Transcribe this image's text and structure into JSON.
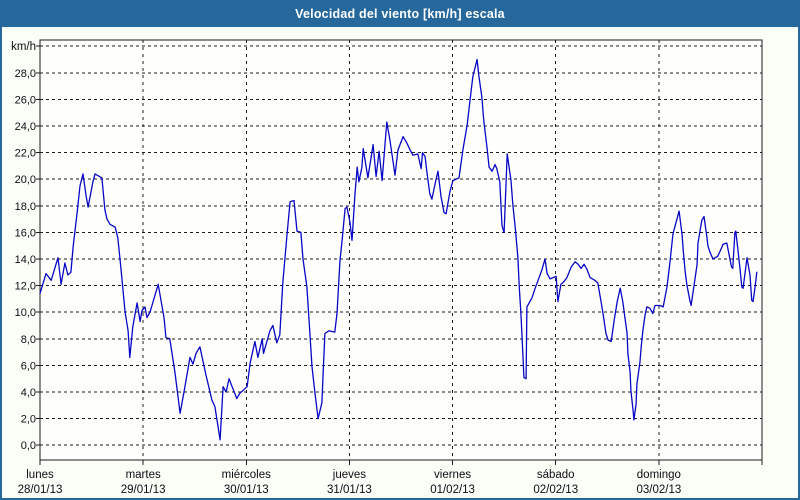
{
  "window": {
    "title": "Velocidad del viento [km/h] escala"
  },
  "colors": {
    "titlebar_bg": "#26689B",
    "outer_border": "#26689B",
    "title_text": "#FFFFFF",
    "line": "#0707C7",
    "grid": "#1c1c1c",
    "label_text": "#0d0d14",
    "plot_bg": "#FEFEFC",
    "page_bg": "#FBFDF7"
  },
  "chart_data": {
    "type": "line",
    "title": "Velocidad del viento [km/h] escala",
    "y_unit_label": "km/h",
    "ylabel": "km/h",
    "xlabel": "",
    "ylim": [
      0,
      30
    ],
    "y_tick_step": 2,
    "y_tick_labels": [
      "0,0",
      "2,0",
      "4,0",
      "6,0",
      "8,0",
      "10,0",
      "12,0",
      "14,0",
      "16,0",
      "18,0",
      "20,0",
      "22,0",
      "24,0",
      "26,0",
      "28,0"
    ],
    "grid": "dashed",
    "legend": "none",
    "x_range_hours": [
      0,
      168
    ],
    "days": [
      {
        "name": "lunes",
        "date": "28/01/13"
      },
      {
        "name": "martes",
        "date": "29/01/13"
      },
      {
        "name": "miércoles",
        "date": "30/01/13"
      },
      {
        "name": "jueves",
        "date": "31/01/13"
      },
      {
        "name": "viernes",
        "date": "01/02/13"
      },
      {
        "name": "sábado",
        "date": "02/02/13"
      },
      {
        "name": "domingo",
        "date": "03/02/13"
      }
    ],
    "series": [
      {
        "name": "velocidad del viento",
        "unit": "km/h",
        "points": [
          [
            0,
            11.4
          ],
          [
            1.4,
            12.9
          ],
          [
            2.6,
            12.4
          ],
          [
            4.2,
            14.1
          ],
          [
            4.9,
            12.1
          ],
          [
            5.8,
            13.7
          ],
          [
            6.5,
            12.8
          ],
          [
            7.2,
            13.0
          ],
          [
            7.7,
            14.9
          ],
          [
            8.6,
            17.4
          ],
          [
            9.3,
            19.5
          ],
          [
            10.0,
            20.4
          ],
          [
            10.7,
            18.8
          ],
          [
            11.2,
            17.9
          ],
          [
            12.3,
            19.8
          ],
          [
            12.8,
            20.4
          ],
          [
            14.4,
            20.1
          ],
          [
            15.1,
            17.7
          ],
          [
            15.6,
            17.0
          ],
          [
            16.3,
            16.6
          ],
          [
            17.5,
            16.4
          ],
          [
            18.1,
            15.6
          ],
          [
            18.8,
            13.4
          ],
          [
            19.8,
            10.0
          ],
          [
            20.5,
            8.6
          ],
          [
            20.9,
            6.6
          ],
          [
            21.6,
            8.9
          ],
          [
            22.6,
            10.7
          ],
          [
            23.3,
            9.3
          ],
          [
            23.7,
            10.1
          ],
          [
            24.4,
            10.4
          ],
          [
            24.9,
            9.6
          ],
          [
            25.6,
            10.0
          ],
          [
            27.5,
            12.1
          ],
          [
            28.9,
            9.5
          ],
          [
            29.3,
            8.1
          ],
          [
            30.2,
            8.0
          ],
          [
            31.4,
            5.5
          ],
          [
            32.6,
            2.4
          ],
          [
            33.5,
            4.0
          ],
          [
            34.9,
            6.6
          ],
          [
            35.6,
            6.1
          ],
          [
            36.3,
            6.9
          ],
          [
            37.2,
            7.4
          ],
          [
            38.6,
            5.3
          ],
          [
            40.0,
            3.4
          ],
          [
            40.7,
            2.9
          ],
          [
            41.9,
            0.4
          ],
          [
            42.6,
            4.4
          ],
          [
            43.3,
            4.0
          ],
          [
            44.0,
            5.0
          ],
          [
            44.7,
            4.4
          ],
          [
            45.8,
            3.5
          ],
          [
            46.5,
            3.9
          ],
          [
            47.2,
            4.1
          ],
          [
            48.2,
            4.4
          ],
          [
            48.9,
            6.2
          ],
          [
            50.0,
            7.8
          ],
          [
            50.7,
            6.6
          ],
          [
            51.7,
            8.0
          ],
          [
            52.0,
            6.9
          ],
          [
            53.5,
            8.6
          ],
          [
            54.2,
            9.0
          ],
          [
            55.1,
            7.7
          ],
          [
            55.8,
            8.3
          ],
          [
            56.5,
            12.2
          ],
          [
            57.5,
            15.9
          ],
          [
            58.2,
            18.3
          ],
          [
            59.1,
            18.4
          ],
          [
            59.8,
            16.1
          ],
          [
            60.7,
            16.0
          ],
          [
            61.2,
            14.0
          ],
          [
            62.1,
            11.9
          ],
          [
            62.8,
            8.4
          ],
          [
            63.3,
            5.9
          ],
          [
            64.0,
            3.9
          ],
          [
            64.7,
            2.0
          ],
          [
            65.6,
            3.2
          ],
          [
            66.0,
            6.2
          ],
          [
            66.3,
            8.4
          ],
          [
            67.2,
            8.6
          ],
          [
            68.6,
            8.5
          ],
          [
            69.1,
            9.9
          ],
          [
            69.8,
            13.9
          ],
          [
            70.3,
            15.4
          ],
          [
            71.0,
            17.8
          ],
          [
            71.4,
            17.9
          ],
          [
            72.1,
            16.8
          ],
          [
            72.6,
            15.4
          ],
          [
            73.3,
            18.9
          ],
          [
            73.8,
            20.9
          ],
          [
            74.2,
            19.8
          ],
          [
            74.9,
            20.9
          ],
          [
            75.2,
            22.3
          ],
          [
            76.3,
            20.1
          ],
          [
            77.5,
            22.6
          ],
          [
            78.2,
            20.2
          ],
          [
            78.9,
            22.1
          ],
          [
            79.6,
            19.9
          ],
          [
            80.7,
            24.3
          ],
          [
            81.4,
            23.0
          ],
          [
            82.6,
            20.3
          ],
          [
            83.3,
            22.2
          ],
          [
            84.5,
            23.2
          ],
          [
            85.4,
            22.7
          ],
          [
            86.1,
            22.2
          ],
          [
            86.8,
            21.8
          ],
          [
            87.9,
            21.9
          ],
          [
            88.7,
            20.8
          ],
          [
            89.0,
            22.0
          ],
          [
            89.6,
            21.7
          ],
          [
            90.0,
            20.6
          ],
          [
            90.7,
            18.9
          ],
          [
            91.2,
            18.5
          ],
          [
            92.1,
            19.9
          ],
          [
            92.6,
            20.6
          ],
          [
            93.3,
            18.7
          ],
          [
            94.0,
            17.5
          ],
          [
            94.5,
            17.4
          ],
          [
            95.4,
            19.1
          ],
          [
            96.1,
            19.9
          ],
          [
            97.5,
            20.1
          ],
          [
            98.4,
            22.2
          ],
          [
            99.4,
            24.1
          ],
          [
            100.0,
            25.8
          ],
          [
            100.7,
            27.7
          ],
          [
            101.7,
            29.0
          ],
          [
            102.1,
            27.8
          ],
          [
            102.8,
            26.2
          ],
          [
            103.3,
            24.3
          ],
          [
            104.0,
            22.4
          ],
          [
            104.5,
            20.9
          ],
          [
            105.2,
            20.6
          ],
          [
            105.9,
            21.1
          ],
          [
            106.3,
            20.8
          ],
          [
            107.0,
            19.8
          ],
          [
            107.5,
            16.5
          ],
          [
            108.0,
            16.0
          ],
          [
            108.7,
            21.9
          ],
          [
            109.6,
            19.9
          ],
          [
            110.0,
            18.2
          ],
          [
            110.7,
            16.0
          ],
          [
            111.2,
            14.1
          ],
          [
            111.5,
            12.0
          ],
          [
            111.9,
            9.9
          ],
          [
            112.2,
            7.9
          ],
          [
            112.6,
            5.1
          ],
          [
            113.1,
            5.0
          ],
          [
            113.3,
            10.4
          ],
          [
            114.5,
            11.1
          ],
          [
            115.2,
            11.8
          ],
          [
            115.9,
            12.4
          ],
          [
            116.8,
            13.2
          ],
          [
            117.5,
            14.0
          ],
          [
            118.0,
            12.9
          ],
          [
            118.7,
            12.5
          ],
          [
            119.4,
            12.6
          ],
          [
            120.1,
            12.7
          ],
          [
            120.5,
            10.8
          ],
          [
            121.2,
            12.1
          ],
          [
            121.9,
            12.3
          ],
          [
            122.6,
            12.6
          ],
          [
            123.6,
            13.4
          ],
          [
            124.5,
            13.8
          ],
          [
            125.2,
            13.6
          ],
          [
            125.9,
            13.3
          ],
          [
            126.6,
            13.6
          ],
          [
            127.3,
            13.2
          ],
          [
            128.0,
            12.6
          ],
          [
            129.1,
            12.4
          ],
          [
            129.8,
            12.2
          ],
          [
            130.5,
            10.9
          ],
          [
            131.0,
            9.9
          ],
          [
            131.7,
            8.4
          ],
          [
            132.2,
            7.9
          ],
          [
            132.9,
            7.8
          ],
          [
            133.6,
            9.4
          ],
          [
            134.3,
            10.8
          ],
          [
            135.0,
            11.8
          ],
          [
            135.6,
            10.8
          ],
          [
            136.1,
            9.6
          ],
          [
            136.6,
            8.4
          ],
          [
            136.8,
            6.9
          ],
          [
            137.3,
            5.5
          ],
          [
            137.5,
            4.1
          ],
          [
            138.0,
            2.6
          ],
          [
            138.2,
            1.9
          ],
          [
            138.7,
            3.1
          ],
          [
            138.9,
            4.6
          ],
          [
            139.6,
            6.2
          ],
          [
            139.9,
            7.4
          ],
          [
            140.3,
            8.7
          ],
          [
            140.8,
            9.8
          ],
          [
            141.2,
            10.4
          ],
          [
            141.9,
            10.3
          ],
          [
            142.6,
            9.9
          ],
          [
            143.1,
            10.5
          ],
          [
            144.3,
            10.5
          ],
          [
            145.0,
            10.4
          ],
          [
            145.9,
            11.9
          ],
          [
            146.6,
            13.8
          ],
          [
            147.3,
            15.9
          ],
          [
            148.7,
            17.6
          ],
          [
            149.4,
            15.8
          ],
          [
            149.7,
            14.5
          ],
          [
            150.1,
            13.1
          ],
          [
            150.5,
            12.1
          ],
          [
            151.2,
            10.9
          ],
          [
            151.5,
            10.5
          ],
          [
            152.4,
            12.5
          ],
          [
            152.9,
            13.6
          ],
          [
            153.1,
            15.2
          ],
          [
            154.0,
            16.9
          ],
          [
            154.5,
            17.2
          ],
          [
            155.2,
            15.6
          ],
          [
            155.4,
            15.0
          ],
          [
            155.9,
            14.5
          ],
          [
            156.6,
            14.0
          ],
          [
            157.7,
            14.2
          ],
          [
            158.7,
            14.9
          ],
          [
            158.9,
            15.1
          ],
          [
            159.8,
            15.2
          ],
          [
            160.9,
            13.4
          ],
          [
            161.2,
            13.3
          ],
          [
            161.7,
            16.0
          ],
          [
            161.9,
            16.1
          ],
          [
            162.4,
            14.7
          ],
          [
            162.9,
            13.2
          ],
          [
            163.3,
            11.9
          ],
          [
            163.6,
            11.8
          ],
          [
            164.5,
            14.1
          ],
          [
            165.2,
            12.8
          ],
          [
            165.6,
            10.9
          ],
          [
            165.9,
            10.8
          ],
          [
            166.4,
            11.9
          ],
          [
            166.8,
            13.0
          ]
        ]
      }
    ]
  }
}
